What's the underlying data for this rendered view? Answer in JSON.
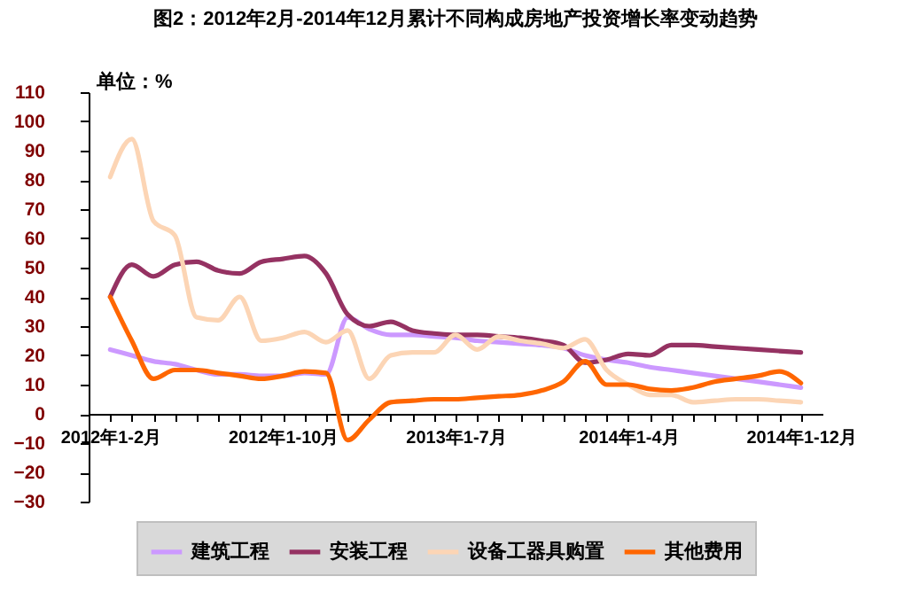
{
  "chart_data": {
    "type": "line",
    "title": "图2：2012年2月-2014年12月累计不同构成房地产投资增长率变动趋势",
    "ylabel": "单位：%",
    "categories": [
      "2012年1-2月",
      null,
      null,
      null,
      null,
      null,
      null,
      null,
      "2012年1-10月",
      null,
      null,
      null,
      null,
      null,
      null,
      null,
      "2013年1-7月",
      null,
      null,
      null,
      null,
      null,
      null,
      null,
      "2014年1-4月",
      null,
      null,
      null,
      null,
      null,
      null,
      null,
      "2014年1-12月"
    ],
    "ylim": [
      -30,
      110
    ],
    "yticks": [
      -30,
      -20,
      -10,
      0,
      10,
      20,
      30,
      40,
      50,
      60,
      70,
      80,
      90,
      100,
      110
    ],
    "grid": false,
    "legend": "bottom",
    "series": [
      {
        "name": "建筑工程",
        "color": "#cc99ff",
        "values": [
          22,
          20,
          18,
          17,
          15,
          13.5,
          13.5,
          13,
          13,
          14,
          13.5,
          33,
          29,
          27,
          27,
          26.5,
          26,
          25,
          24.5,
          24,
          23.5,
          22.5,
          20,
          18.5,
          17.5,
          16,
          15,
          14,
          13,
          12,
          11,
          10,
          9
        ]
      },
      {
        "name": "安装工程",
        "color": "#953262",
        "values": [
          40,
          51,
          47,
          51,
          52,
          49,
          48,
          52,
          53,
          54,
          48,
          34,
          30,
          31.5,
          28.5,
          27.5,
          27,
          27,
          26.5,
          26,
          25,
          23.5,
          17.5,
          18.5,
          20.5,
          20,
          23.5,
          23.5,
          23,
          22.5,
          22,
          21.5,
          21
        ]
      },
      {
        "name": "设备工器具购置",
        "color": "#fcd5b5",
        "values": [
          81,
          94,
          66,
          61,
          33,
          32,
          40,
          25,
          26,
          28,
          24.5,
          28.5,
          12,
          20,
          21,
          21,
          27,
          22,
          26.5,
          25,
          24,
          22.5,
          25.5,
          15,
          10,
          6.5,
          6.5,
          4,
          4.5,
          5,
          5,
          4.5,
          4
        ]
      },
      {
        "name": "其他费用",
        "color": "#ff6600",
        "values": [
          40,
          25,
          12,
          15,
          15,
          14,
          13,
          12,
          13,
          14.5,
          14,
          -9,
          -2,
          4,
          4.5,
          5,
          5,
          5.5,
          6,
          6.5,
          8,
          11,
          18,
          10,
          10,
          8.5,
          8,
          9,
          11,
          12,
          13,
          14.5,
          10.5
        ]
      }
    ]
  }
}
